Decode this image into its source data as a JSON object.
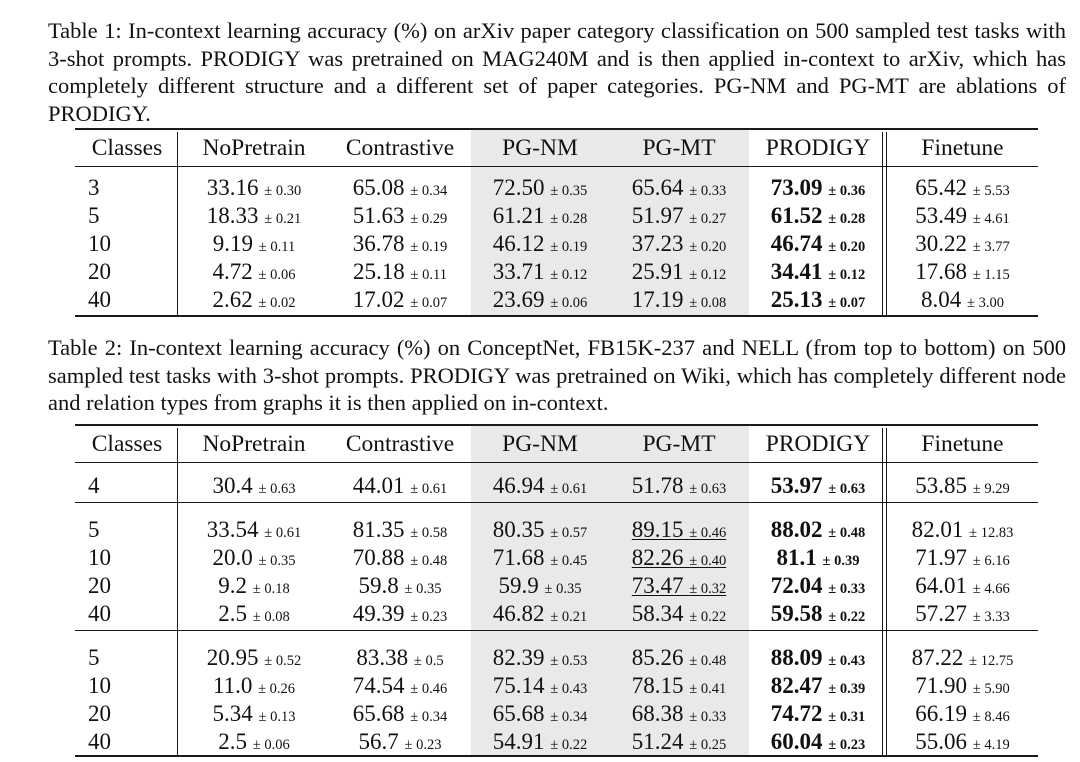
{
  "table1": {
    "caption": "Table 1: In-context learning accuracy (%) on arXiv paper category classification on 500 sampled test tasks with 3-shot prompts. PRODIGY was pretrained on MAG240M and is then applied in-context to arXiv, which has completely different structure and a different set of paper categories. PG-NM and PG-MT are ablations of PRODIGY.",
    "headers": [
      "Classes",
      "NoPretrain",
      "Contrastive",
      "PG-NM",
      "PG-MT",
      "PRODIGY",
      "Finetune"
    ],
    "groups": [
      [
        {
          "classes": "3",
          "NoPretrain": {
            "v": "33.16",
            "e": "± 0.30"
          },
          "Contrastive": {
            "v": "65.08",
            "e": "± 0.34"
          },
          "PG-NM": {
            "v": "72.50",
            "e": "± 0.35"
          },
          "PG-MT": {
            "v": "65.64",
            "e": "± 0.33"
          },
          "PRODIGY": {
            "v": "73.09",
            "e": "± 0.36"
          },
          "Finetune": {
            "v": "65.42",
            "e": "± 5.53"
          }
        },
        {
          "classes": "5",
          "NoPretrain": {
            "v": "18.33",
            "e": "± 0.21"
          },
          "Contrastive": {
            "v": "51.63",
            "e": "± 0.29"
          },
          "PG-NM": {
            "v": "61.21",
            "e": "± 0.28"
          },
          "PG-MT": {
            "v": "51.97",
            "e": "± 0.27"
          },
          "PRODIGY": {
            "v": "61.52",
            "e": "± 0.28"
          },
          "Finetune": {
            "v": "53.49",
            "e": "± 4.61"
          }
        },
        {
          "classes": "10",
          "NoPretrain": {
            "v": "9.19",
            "e": "± 0.11"
          },
          "Contrastive": {
            "v": "36.78",
            "e": "± 0.19"
          },
          "PG-NM": {
            "v": "46.12",
            "e": "± 0.19"
          },
          "PG-MT": {
            "v": "37.23",
            "e": "± 0.20"
          },
          "PRODIGY": {
            "v": "46.74",
            "e": "± 0.20"
          },
          "Finetune": {
            "v": "30.22",
            "e": "± 3.77"
          }
        },
        {
          "classes": "20",
          "NoPretrain": {
            "v": "4.72",
            "e": "± 0.06"
          },
          "Contrastive": {
            "v": "25.18",
            "e": "± 0.11"
          },
          "PG-NM": {
            "v": "33.71",
            "e": "± 0.12"
          },
          "PG-MT": {
            "v": "25.91",
            "e": "± 0.12"
          },
          "PRODIGY": {
            "v": "34.41",
            "e": "± 0.12"
          },
          "Finetune": {
            "v": "17.68",
            "e": "± 1.15"
          }
        },
        {
          "classes": "40",
          "NoPretrain": {
            "v": "2.62",
            "e": "± 0.02"
          },
          "Contrastive": {
            "v": "17.02",
            "e": "± 0.07"
          },
          "PG-NM": {
            "v": "23.69",
            "e": "± 0.06"
          },
          "PG-MT": {
            "v": "17.19",
            "e": "± 0.08"
          },
          "PRODIGY": {
            "v": "25.13",
            "e": "± 0.07"
          },
          "Finetune": {
            "v": "8.04",
            "e": "± 3.00"
          }
        }
      ]
    ]
  },
  "table2": {
    "caption": "Table 2: In-context learning accuracy (%) on ConceptNet, FB15K-237 and NELL (from top to bottom) on 500 sampled test tasks with 3-shot prompts. PRODIGY was pretrained on Wiki, which has completely different node and relation types from graphs it is then applied on in-context.",
    "headers": [
      "Classes",
      "NoPretrain",
      "Contrastive",
      "PG-NM",
      "PG-MT",
      "PRODIGY",
      "Finetune"
    ],
    "groups": [
      [
        {
          "classes": "4",
          "NoPretrain": {
            "v": "30.4",
            "e": "± 0.63"
          },
          "Contrastive": {
            "v": "44.01",
            "e": "± 0.61"
          },
          "PG-NM": {
            "v": "46.94",
            "e": "± 0.61"
          },
          "PG-MT": {
            "v": "51.78",
            "e": "± 0.63"
          },
          "PRODIGY": {
            "v": "53.97",
            "e": "± 0.63"
          },
          "Finetune": {
            "v": "53.85",
            "e": "± 9.29"
          }
        }
      ],
      [
        {
          "classes": "5",
          "NoPretrain": {
            "v": "33.54",
            "e": "± 0.61"
          },
          "Contrastive": {
            "v": "81.35",
            "e": "± 0.58"
          },
          "PG-NM": {
            "v": "80.35",
            "e": "± 0.57"
          },
          "PG-MT": {
            "v": "89.15",
            "e": "± 0.46"
          },
          "PRODIGY": {
            "v": "88.02",
            "e": "± 0.48"
          },
          "Finetune": {
            "v": "82.01",
            "e": "± 12.83"
          }
        },
        {
          "classes": "10",
          "NoPretrain": {
            "v": "20.0",
            "e": "± 0.35"
          },
          "Contrastive": {
            "v": "70.88",
            "e": "± 0.48"
          },
          "PG-NM": {
            "v": "71.68",
            "e": "± 0.45"
          },
          "PG-MT": {
            "v": "82.26",
            "e": "± 0.40"
          },
          "PRODIGY": {
            "v": "81.1",
            "e": "± 0.39"
          },
          "Finetune": {
            "v": "71.97",
            "e": "± 6.16"
          }
        },
        {
          "classes": "20",
          "NoPretrain": {
            "v": "9.2",
            "e": "± 0.18"
          },
          "Contrastive": {
            "v": "59.8",
            "e": "± 0.35"
          },
          "PG-NM": {
            "v": "59.9",
            "e": "± 0.35"
          },
          "PG-MT": {
            "v": "73.47",
            "e": "± 0.32"
          },
          "PRODIGY": {
            "v": "72.04",
            "e": "± 0.33"
          },
          "Finetune": {
            "v": "64.01",
            "e": "± 4.66"
          }
        },
        {
          "classes": "40",
          "NoPretrain": {
            "v": "2.5",
            "e": "± 0.08"
          },
          "Contrastive": {
            "v": "49.39",
            "e": "± 0.23"
          },
          "PG-NM": {
            "v": "46.82",
            "e": "± 0.21"
          },
          "PG-MT": {
            "v": "58.34",
            "e": "± 0.22"
          },
          "PRODIGY": {
            "v": "59.58",
            "e": "± 0.22"
          },
          "Finetune": {
            "v": "57.27",
            "e": "± 3.33"
          }
        }
      ],
      [
        {
          "classes": "5",
          "NoPretrain": {
            "v": "20.95",
            "e": "± 0.52"
          },
          "Contrastive": {
            "v": "83.38",
            "e": "± 0.5"
          },
          "PG-NM": {
            "v": "82.39",
            "e": "± 0.53"
          },
          "PG-MT": {
            "v": "85.26",
            "e": "± 0.48"
          },
          "PRODIGY": {
            "v": "88.09",
            "e": "± 0.43"
          },
          "Finetune": {
            "v": "87.22",
            "e": "± 12.75"
          }
        },
        {
          "classes": "10",
          "NoPretrain": {
            "v": "11.0",
            "e": "± 0.26"
          },
          "Contrastive": {
            "v": "74.54",
            "e": "± 0.46"
          },
          "PG-NM": {
            "v": "75.14",
            "e": "± 0.43"
          },
          "PG-MT": {
            "v": "78.15",
            "e": "± 0.41"
          },
          "PRODIGY": {
            "v": "82.47",
            "e": "± 0.39"
          },
          "Finetune": {
            "v": "71.90",
            "e": "± 5.90"
          }
        },
        {
          "classes": "20",
          "NoPretrain": {
            "v": "5.34",
            "e": "± 0.13"
          },
          "Contrastive": {
            "v": "65.68",
            "e": "± 0.34"
          },
          "PG-NM": {
            "v": "65.68",
            "e": "± 0.34"
          },
          "PG-MT": {
            "v": "68.38",
            "e": "± 0.33"
          },
          "PRODIGY": {
            "v": "74.72",
            "e": "± 0.31"
          },
          "Finetune": {
            "v": "66.19",
            "e": "± 8.46"
          }
        },
        {
          "classes": "40",
          "NoPretrain": {
            "v": "2.5",
            "e": "± 0.06"
          },
          "Contrastive": {
            "v": "56.7",
            "e": "± 0.23"
          },
          "PG-NM": {
            "v": "54.91",
            "e": "± 0.22"
          },
          "PG-MT": {
            "v": "51.24",
            "e": "± 0.25"
          },
          "PRODIGY": {
            "v": "60.04",
            "e": "± 0.23"
          },
          "Finetune": {
            "v": "55.06",
            "e": "± 4.19"
          }
        }
      ]
    ]
  },
  "emphasis": {
    "bold_column": "PRODIGY",
    "underlined_cells": [
      {
        "table": "table2",
        "group": 1,
        "row": 0,
        "column": "PG-MT"
      },
      {
        "table": "table2",
        "group": 1,
        "row": 1,
        "column": "PG-MT"
      },
      {
        "table": "table2",
        "group": 1,
        "row": 2,
        "column": "PG-MT"
      }
    ],
    "shaded_columns": [
      "PG-NM",
      "PG-MT"
    ],
    "shade_color": "#e9e9e9"
  }
}
